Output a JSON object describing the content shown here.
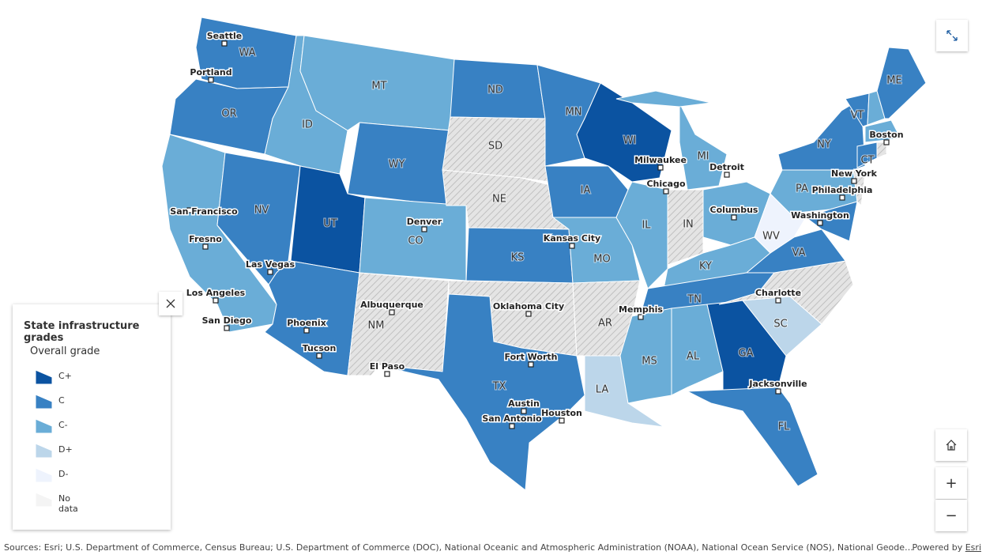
{
  "legend": {
    "title": "State infrastructure grades",
    "subtitle": "Overall grade",
    "items": [
      {
        "label": "C+",
        "color": "#0b53a1"
      },
      {
        "label": "C",
        "color": "#3881c3"
      },
      {
        "label": "C-",
        "color": "#6aadd7"
      },
      {
        "label": "D+",
        "color": "#bcd6ea"
      },
      {
        "label": "D-",
        "color": "#eef3fd"
      },
      {
        "label": "No data",
        "color": "#f4f4f4",
        "hatch": true
      }
    ]
  },
  "states": [
    {
      "label": "WA",
      "grade": "C"
    },
    {
      "label": "OR",
      "grade": "C"
    },
    {
      "grade": "C-"
    },
    {
      "label": "NV",
      "grade": "C"
    },
    {
      "label": "ID",
      "grade": "C-"
    },
    {
      "label": "MT",
      "grade": "C-"
    },
    {
      "label": "WY",
      "grade": "C"
    },
    {
      "label": "UT",
      "grade": "C+"
    },
    {
      "grade": "C"
    },
    {
      "label": "CO",
      "grade": "C-"
    },
    {
      "label": "NM",
      "grade": "No data"
    },
    {
      "label": "ND",
      "grade": "C"
    },
    {
      "label": "SD",
      "grade": "No data"
    },
    {
      "label": "NE",
      "grade": "No data"
    },
    {
      "label": "KS",
      "grade": "C"
    },
    {
      "grade": "No data"
    },
    {
      "label": "TX",
      "grade": "C"
    },
    {
      "label": "MN",
      "grade": "C"
    },
    {
      "label": "IA",
      "grade": "C"
    },
    {
      "label": "MO",
      "grade": "C-"
    },
    {
      "label": "AR",
      "grade": "No data"
    },
    {
      "label": "LA",
      "grade": "D+"
    },
    {
      "label": "WI",
      "grade": "C+"
    },
    {
      "label": "IL",
      "grade": "C-"
    },
    {
      "label": "MI",
      "grade": "C-"
    },
    {
      "grade": "C-"
    },
    {
      "label": "IN",
      "grade": "No data"
    },
    {
      "grade": "C-"
    },
    {
      "label": "KY",
      "grade": "C-"
    },
    {
      "label": "TN",
      "grade": "C"
    },
    {
      "label": "MS",
      "grade": "C-"
    },
    {
      "label": "AL",
      "grade": "C-"
    },
    {
      "label": "GA",
      "grade": "C+"
    },
    {
      "label": "FL",
      "grade": "C"
    },
    {
      "label": "SC",
      "grade": "D+"
    },
    {
      "grade": "No data"
    },
    {
      "label": "VA",
      "grade": "C"
    },
    {
      "label": "WV",
      "grade": "D-"
    },
    {
      "label": "PA",
      "grade": "C-"
    },
    {
      "label": "NY",
      "grade": "C"
    },
    {
      "grade": "C"
    },
    {
      "grade": "No data"
    },
    {
      "label": "VT",
      "grade": "C"
    },
    {
      "grade": "C-"
    },
    {
      "label": "ME",
      "grade": "C"
    },
    {
      "grade": "C-"
    },
    {
      "label": "CT",
      "grade": "C"
    },
    {
      "grade": "No data"
    }
  ],
  "cities": [
    "Seattle",
    "Portland",
    "San Francisco",
    "Fresno",
    "Los Angeles",
    "San Diego",
    "Las Vegas",
    "Phoenix",
    "Tucson",
    "Denver",
    "Albuquerque",
    "El Paso",
    "Oklahoma City",
    "Fort Worth",
    "Austin",
    "San Antonio",
    "Houston",
    "Kansas City",
    "Memphis",
    "Chicago",
    "Milwaukee",
    "Detroit",
    "Columbus",
    "Washington",
    "Philadelphia",
    "New York",
    "Boston",
    "Charlotte",
    "Jacksonville"
  ],
  "controls": {
    "zoom_in": "+",
    "zoom_out": "−"
  },
  "attribution": {
    "sources": "Sources: Esri; U.S. Department of Commerce, Census Bureau; U.S. Department of Commerce (DOC), National Oceanic and Atmospheric Administration (NOAA), National Ocean Service (NOS), National Geode…",
    "powered_by": "Powered by",
    "esri": "Esri"
  }
}
